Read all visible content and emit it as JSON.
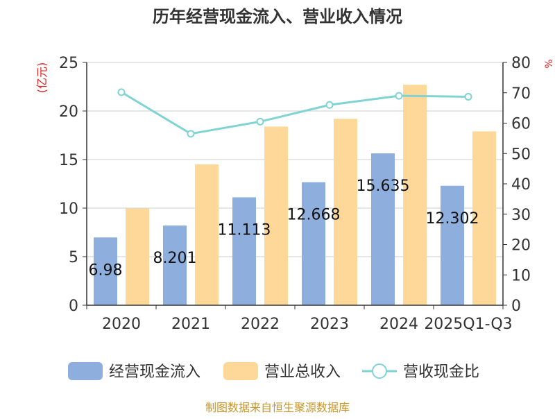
{
  "chart_data": {
    "type": "bar",
    "title": "历年经营现金流入、营业收入情况",
    "left_axis_unit": "(亿元)",
    "right_axis_unit": "%",
    "categories": [
      "2020",
      "2021",
      "2022",
      "2023",
      "2024",
      "2025Q1-Q3"
    ],
    "ylim_left": [
      0,
      25
    ],
    "yticks_left": [
      "0",
      "5",
      "10",
      "15",
      "20",
      "25"
    ],
    "ylim_right": [
      0,
      80
    ],
    "yticks_right": [
      "0",
      "10",
      "20",
      "30",
      "40",
      "50",
      "60",
      "70",
      "80"
    ],
    "grid": true,
    "legend_position": "bottom",
    "series": [
      {
        "name": "经营现金流入",
        "type": "bar",
        "axis": "left",
        "color": "#8eaedd",
        "values": [
          6.98,
          8.201,
          11.113,
          12.668,
          15.635,
          12.302
        ],
        "labels": [
          "6.98",
          "8.201",
          "11.113",
          "12.668",
          "15.635",
          "12.302"
        ]
      },
      {
        "name": "营业总收入",
        "type": "bar",
        "axis": "left",
        "color": "#fdd898",
        "values": [
          9.95,
          14.5,
          18.4,
          19.2,
          22.7,
          17.9
        ]
      },
      {
        "name": "营收现金比",
        "type": "line",
        "axis": "right",
        "color": "#7fd3d3",
        "values": [
          70.2,
          56.5,
          60.5,
          66.0,
          69.0,
          68.7
        ]
      }
    ],
    "source": "制图数据来自恒生聚源数据库"
  }
}
